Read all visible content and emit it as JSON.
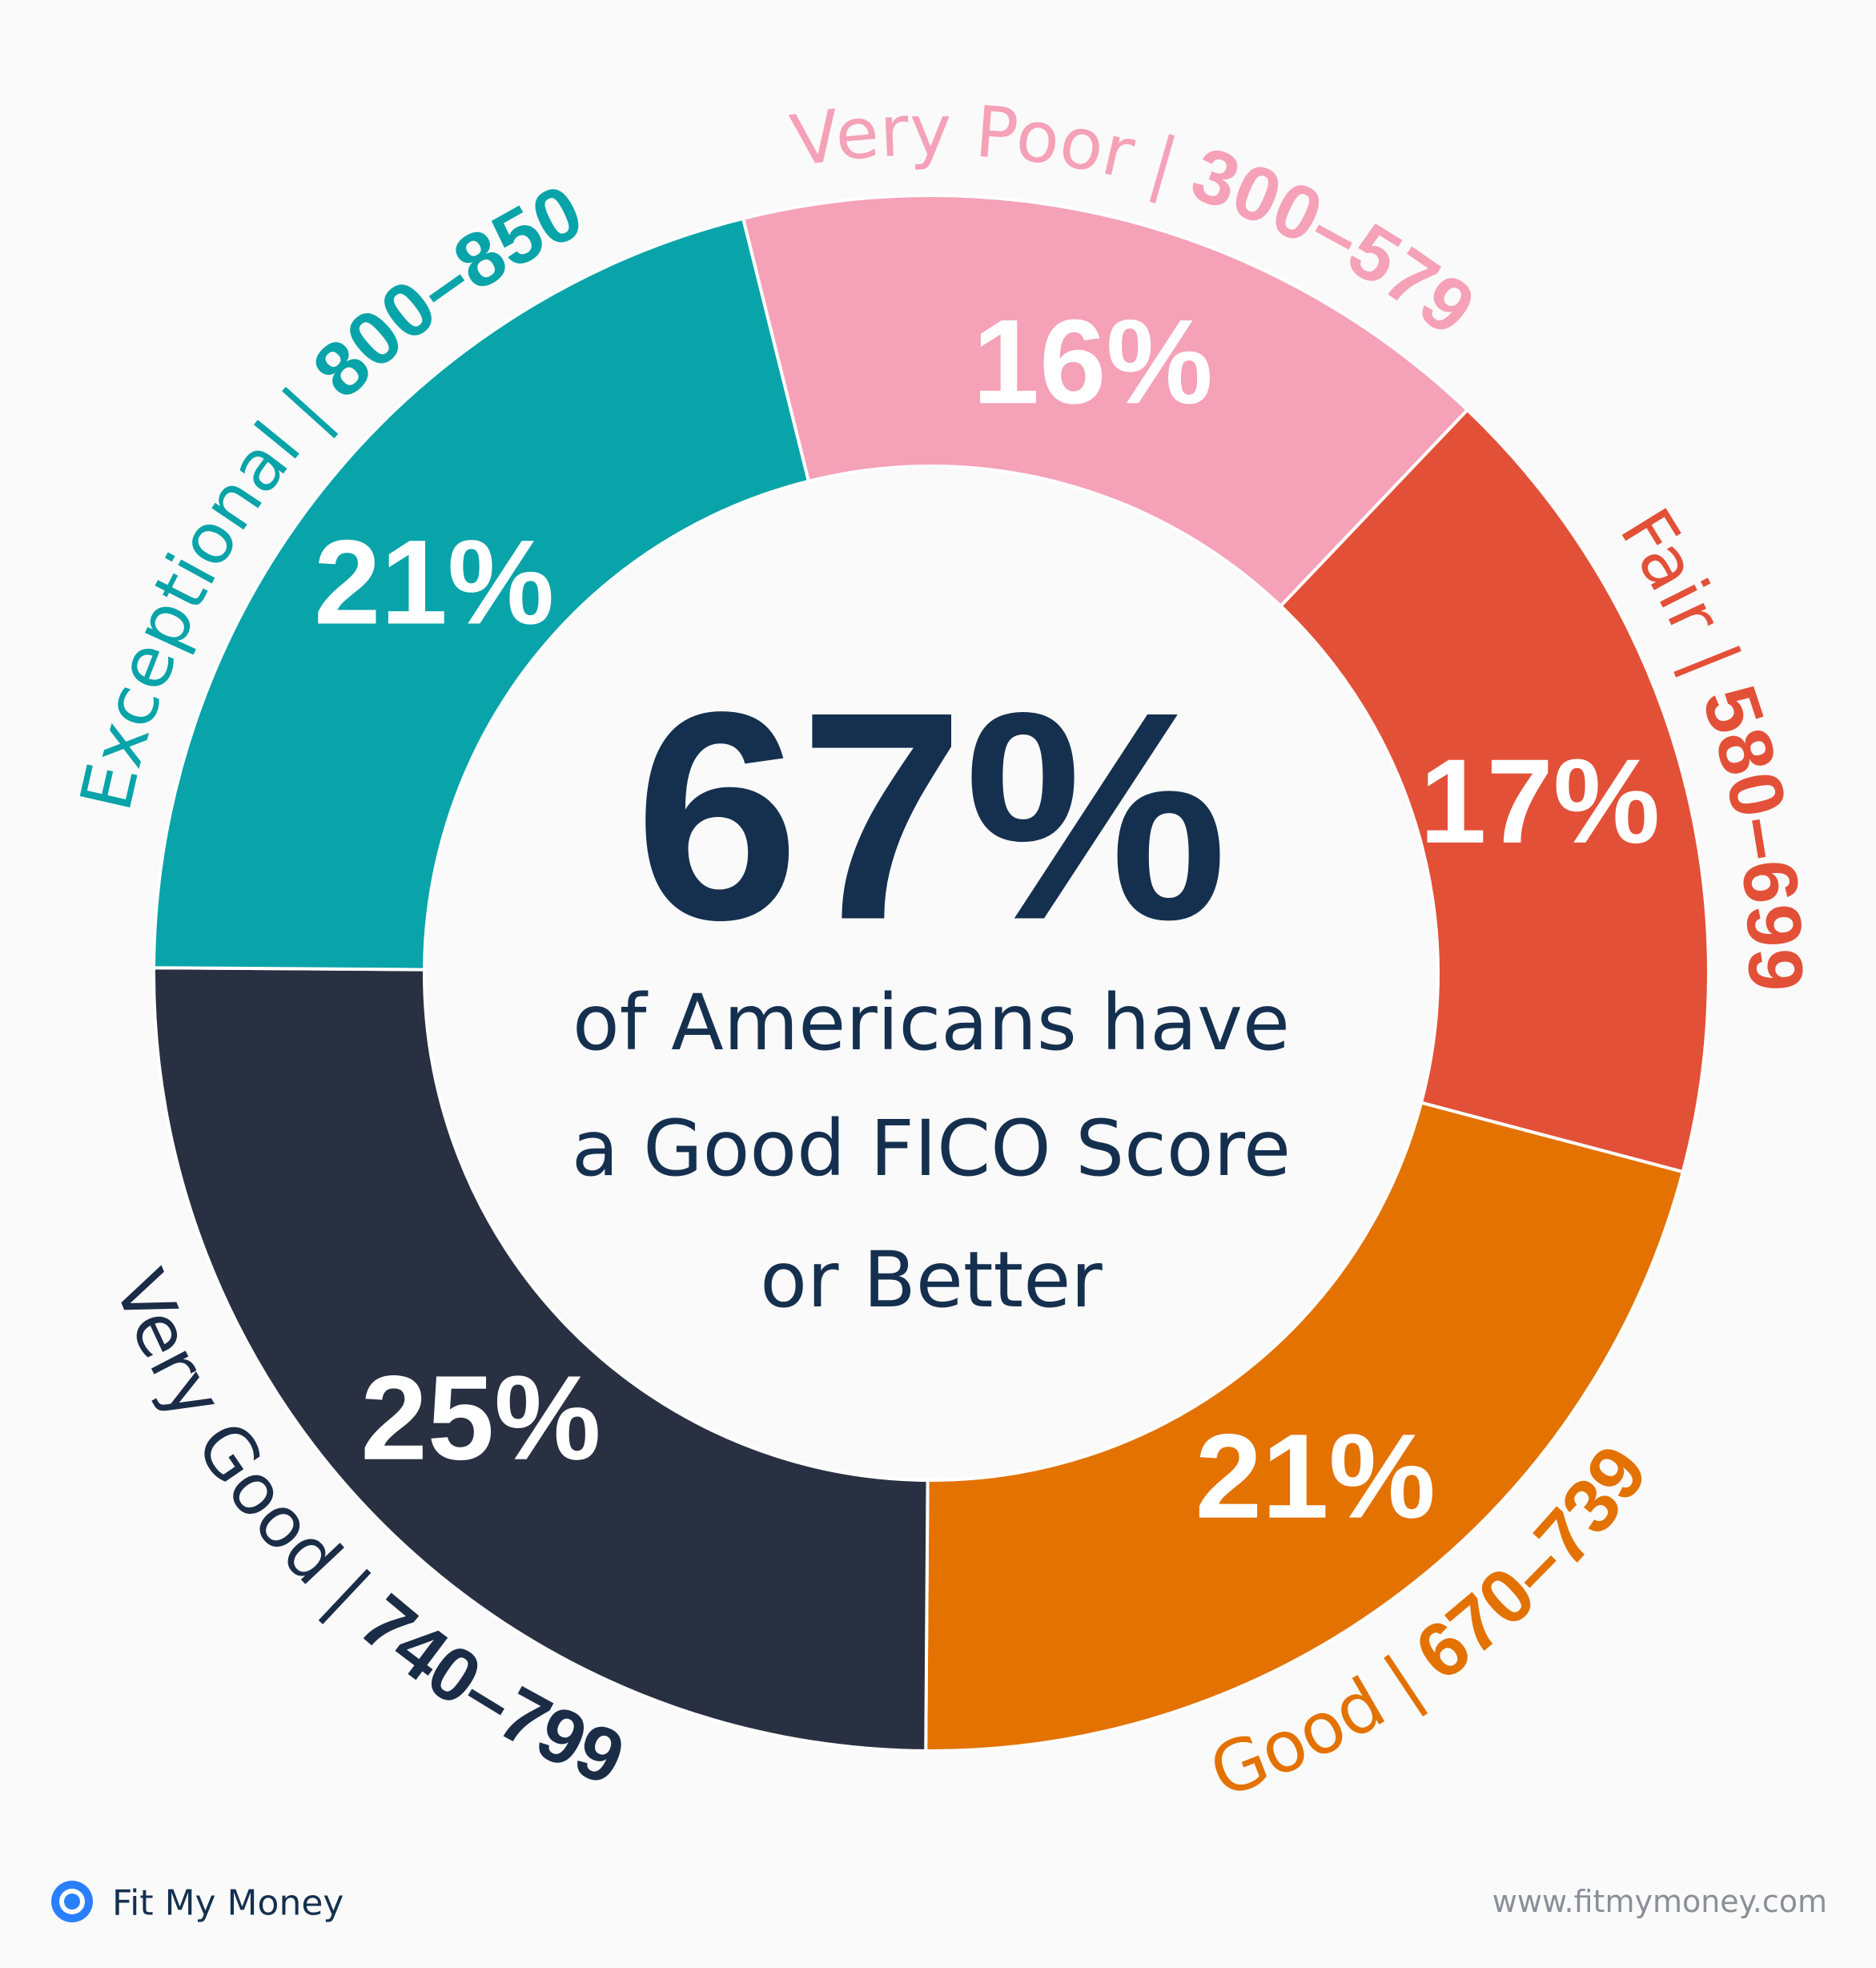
{
  "chart_data": {
    "type": "donut",
    "headline": "67%",
    "subtitle_lines": [
      "of Americans have",
      "a Good FICO Score",
      "or Better"
    ],
    "categories": [
      "Very Poor",
      "Fair",
      "Good",
      "Very Good",
      "Exceptional"
    ],
    "ranges": [
      "300–579",
      "580–699",
      "670–739",
      "740–799",
      "800–850"
    ],
    "label_separator": "|",
    "values": [
      16,
      17,
      21,
      25,
      21
    ],
    "value_labels": [
      "16%",
      "17%",
      "21%",
      "25%",
      "21%"
    ],
    "colors": [
      "#f5a1b8",
      "#e35038",
      "#e37200",
      "#293041",
      "#08a4a9"
    ],
    "label_colors": [
      "#f5a1b8",
      "#e35038",
      "#e37200",
      "#1b2c47",
      "#08a4a9"
    ]
  },
  "footer": {
    "brand": "Fit My Money",
    "url": "www.fitmymoney.com"
  }
}
